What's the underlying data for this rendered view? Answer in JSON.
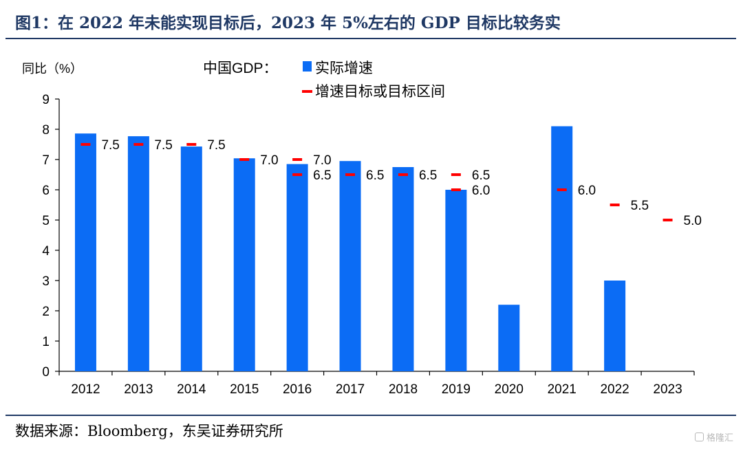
{
  "title": "图1：在 2022 年未能实现目标后，2023 年 5%左右的 GDP 目标比较务实",
  "source": "数据来源：Bloomberg，东吴证券研究所",
  "watermark": "格隆汇",
  "colors": {
    "bar": "#0b6cf5",
    "target": "#ff0000",
    "title": "#1f3864"
  },
  "chart_data": {
    "type": "bar",
    "ylabel": "同比（%）",
    "legend_title": "中国GDP：",
    "legend_placement": "top",
    "ylim": [
      0,
      9
    ],
    "yticks": [
      0,
      1,
      2,
      3,
      4,
      5,
      6,
      7,
      8,
      9
    ],
    "grid": false,
    "categories": [
      "2012",
      "2013",
      "2014",
      "2015",
      "2016",
      "2017",
      "2018",
      "2019",
      "2020",
      "2021",
      "2022",
      "2023"
    ],
    "series": [
      {
        "name": "实际增速",
        "kind": "bar",
        "values": [
          7.86,
          7.77,
          7.43,
          7.04,
          6.85,
          6.95,
          6.75,
          6.0,
          2.2,
          8.1,
          3.0,
          null
        ]
      },
      {
        "name": "增速目标或目标区间",
        "kind": "marker",
        "points": [
          {
            "category": "2012",
            "value": 7.5,
            "label": "7.5"
          },
          {
            "category": "2013",
            "value": 7.5,
            "label": "7.5"
          },
          {
            "category": "2014",
            "value": 7.5,
            "label": "7.5"
          },
          {
            "category": "2015",
            "value": 7.0,
            "label": "7.0"
          },
          {
            "category": "2016",
            "value": 7.0,
            "label": "7.0"
          },
          {
            "category": "2016",
            "value": 6.5,
            "label": "6.5"
          },
          {
            "category": "2017",
            "value": 6.5,
            "label": "6.5"
          },
          {
            "category": "2018",
            "value": 6.5,
            "label": "6.5"
          },
          {
            "category": "2019",
            "value": 6.5,
            "label": "6.5"
          },
          {
            "category": "2019",
            "value": 6.0,
            "label": "6.0"
          },
          {
            "category": "2021",
            "value": 6.0,
            "label": "6.0"
          },
          {
            "category": "2022",
            "value": 5.5,
            "label": "5.5"
          },
          {
            "category": "2023",
            "value": 5.0,
            "label": "5.0"
          }
        ]
      }
    ]
  }
}
